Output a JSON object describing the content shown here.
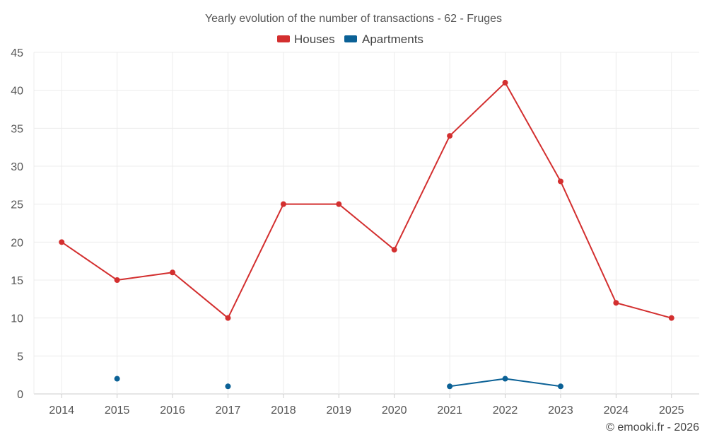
{
  "chart_data": {
    "type": "line",
    "title": "Yearly evolution of the number of transactions - 62 - Fruges",
    "categories": [
      "2014",
      "2015",
      "2016",
      "2017",
      "2018",
      "2019",
      "2020",
      "2021",
      "2022",
      "2023",
      "2024",
      "2025"
    ],
    "series": [
      {
        "name": "Houses",
        "color": "#d32f2f",
        "values": [
          20,
          15,
          16,
          10,
          25,
          25,
          19,
          34,
          41,
          28,
          12,
          10
        ]
      },
      {
        "name": "Apartments",
        "color": "#0b6196",
        "values": [
          null,
          2,
          null,
          1,
          null,
          null,
          null,
          1,
          2,
          1,
          null,
          null
        ]
      }
    ],
    "ylim": [
      0,
      45
    ],
    "yticks": [
      0,
      5,
      10,
      15,
      20,
      25,
      30,
      35,
      40,
      45
    ],
    "xlabel": "",
    "ylabel": "",
    "grid": true,
    "legend": "top-center"
  },
  "footer": "© emooki.fr - 2026"
}
